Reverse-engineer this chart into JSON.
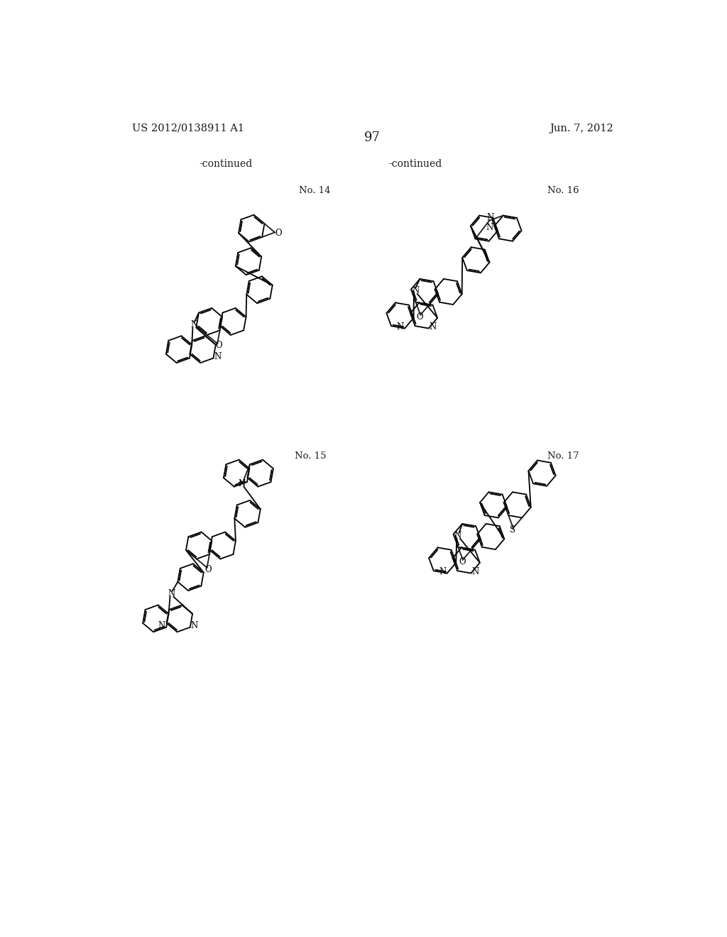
{
  "page_number": "97",
  "patent_number": "US 2012/0138911 A1",
  "date": "Jun. 7, 2012",
  "continued_left": "-continued",
  "continued_right": "-continued",
  "background_color": "#ffffff",
  "text_color": "#2a2a2a",
  "line_color": "#1a1a1a",
  "label_14": "No. 14",
  "label_15": "No. 15",
  "label_16": "No. 16",
  "label_17": "No. 17"
}
